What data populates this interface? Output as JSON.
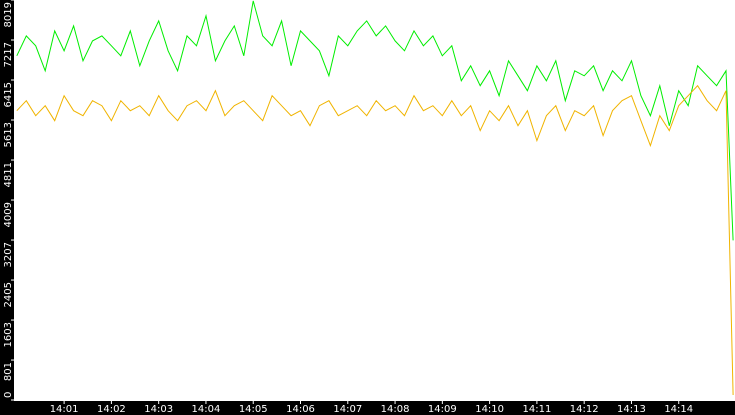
{
  "chart_data": {
    "type": "line",
    "x": [
      840.0,
      840.2,
      840.4,
      840.6,
      840.8,
      841.0,
      841.2,
      841.4,
      841.6,
      841.8,
      842.0,
      842.2,
      842.4,
      842.6,
      842.8,
      843.0,
      843.2,
      843.4,
      843.6,
      843.8,
      844.0,
      844.2,
      844.4,
      844.6,
      844.8,
      845.0,
      845.2,
      845.4,
      845.6,
      845.8,
      846.0,
      846.2,
      846.4,
      846.6,
      846.8,
      847.0,
      847.2,
      847.4,
      847.6,
      847.8,
      848.0,
      848.2,
      848.4,
      848.6,
      848.8,
      849.0,
      849.2,
      849.4,
      849.6,
      849.8,
      850.0,
      850.2,
      850.4,
      850.6,
      850.8,
      851.0,
      851.2,
      851.4,
      851.6,
      851.8,
      852.0,
      852.2,
      852.4,
      852.6,
      852.8,
      853.0,
      853.2,
      853.4,
      853.6,
      853.8,
      854.0,
      854.2,
      854.4,
      854.6,
      854.8,
      855.0,
      855.15
    ],
    "series": [
      {
        "color": "#00ee00",
        "values": [
          6900,
          7300,
          7100,
          6600,
          7400,
          7000,
          7500,
          6800,
          7200,
          7300,
          7100,
          6900,
          7400,
          6700,
          7200,
          7600,
          7000,
          6600,
          7300,
          7100,
          7700,
          6800,
          7200,
          7500,
          6900,
          8000,
          7300,
          7100,
          7600,
          6700,
          7400,
          7200,
          7000,
          6500,
          7300,
          7100,
          7400,
          7600,
          7300,
          7500,
          7200,
          7000,
          7400,
          7100,
          7300,
          6900,
          7100,
          6400,
          6700,
          6300,
          6600,
          6100,
          6800,
          6500,
          6200,
          6700,
          6400,
          6800,
          6000,
          6600,
          6500,
          6700,
          6200,
          6600,
          6400,
          6800,
          6100,
          5700,
          6300,
          5500,
          6200,
          5900,
          6700,
          6500,
          6300,
          6600,
          3200
        ]
      },
      {
        "color": "#f0b400",
        "values": [
          5800,
          6000,
          5700,
          5900,
          5600,
          6100,
          5800,
          5700,
          6000,
          5900,
          5600,
          6000,
          5800,
          5900,
          5700,
          6100,
          5800,
          5600,
          5900,
          6000,
          5800,
          6200,
          5700,
          5900,
          6000,
          5800,
          5600,
          6100,
          5900,
          5700,
          5800,
          5500,
          5900,
          6000,
          5700,
          5800,
          5900,
          5700,
          6000,
          5800,
          5900,
          5700,
          6100,
          5800,
          5900,
          5700,
          6000,
          5700,
          5900,
          5400,
          5800,
          5600,
          5900,
          5500,
          5800,
          5200,
          5700,
          5900,
          5400,
          5800,
          5700,
          5900,
          5300,
          5800,
          6000,
          6100,
          5600,
          5100,
          5700,
          5400,
          5900,
          6100,
          6300,
          6000,
          5800,
          6200,
          100
        ]
      }
    ],
    "xlim": [
      839.94,
      855.19
    ],
    "xticks": [
      {
        "value": 841,
        "label": "14:01"
      },
      {
        "value": 842,
        "label": "14:02"
      },
      {
        "value": 843,
        "label": "14:03"
      },
      {
        "value": 844,
        "label": "14:04"
      },
      {
        "value": 845,
        "label": "14:05"
      },
      {
        "value": 846,
        "label": "14:06"
      },
      {
        "value": 847,
        "label": "14:07"
      },
      {
        "value": 848,
        "label": "14:08"
      },
      {
        "value": 849,
        "label": "14:09"
      },
      {
        "value": 850,
        "label": "14:10"
      },
      {
        "value": 851,
        "label": "14:11"
      },
      {
        "value": 852,
        "label": "14:12"
      },
      {
        "value": 853,
        "label": "14:13"
      },
      {
        "value": 854,
        "label": "14:14"
      }
    ],
    "ylim": [
      0,
      8019
    ],
    "yticks": [
      0,
      801,
      1603,
      2405,
      3207,
      4009,
      4811,
      5613,
      6415,
      7217,
      8019
    ]
  }
}
